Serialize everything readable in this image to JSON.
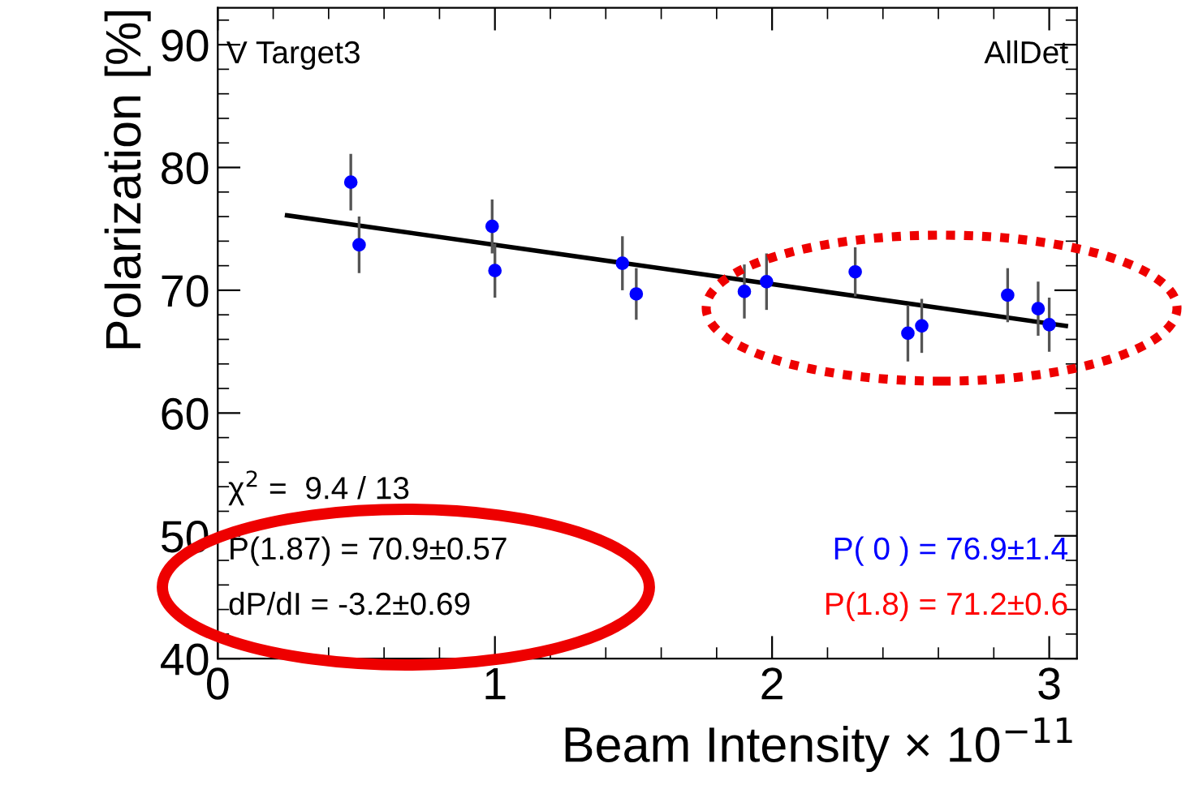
{
  "chart_data": {
    "type": "scatter",
    "xlabel": "Beam Intensity × 10$^{−11}$",
    "ylabel": "Polarization [%]",
    "xlim": [
      0,
      3.1
    ],
    "xticks": [
      0,
      1,
      2,
      3
    ],
    "ylim": [
      40,
      93
    ],
    "yticks": [
      40,
      50,
      60,
      70,
      80,
      90
    ],
    "grid": false,
    "legend": false,
    "series": [
      {
        "color": "#0000ff",
        "marker": "circle",
        "x": [
          0.48,
          0.51,
          0.99,
          1.0,
          1.46,
          1.51,
          1.9,
          1.98,
          2.3,
          2.49,
          2.54,
          2.85,
          2.96,
          3.0
        ],
        "values": [
          78.8,
          73.7,
          75.2,
          71.6,
          72.2,
          69.7,
          69.9,
          70.7,
          71.5,
          66.5,
          67.1,
          69.6,
          68.5,
          67.2
        ],
        "errors": [
          2.3,
          2.3,
          2.2,
          2.2,
          2.2,
          2.1,
          2.2,
          2.3,
          2.0,
          2.3,
          2.2,
          2.2,
          2.2,
          2.2
        ]
      },
      {
        "type": "line",
        "color": "#000000",
        "x": [
          0.25,
          3.06
        ],
        "values": [
          76.1,
          67.1
        ]
      }
    ],
    "annotations": [
      {
        "text": "V Target3"
      },
      {
        "text": "AllDet"
      },
      {
        "text": "χ$^{2}$ =  9.4 / 13"
      },
      {
        "text": "P(1.87) = 70.9±0.57"
      },
      {
        "text": "dP/dI = -3.2±0.69"
      },
      {
        "text": "P( 0 ) = 76.9±1.4"
      },
      {
        "text": "P(1.8) = 71.2±0.6"
      }
    ]
  }
}
